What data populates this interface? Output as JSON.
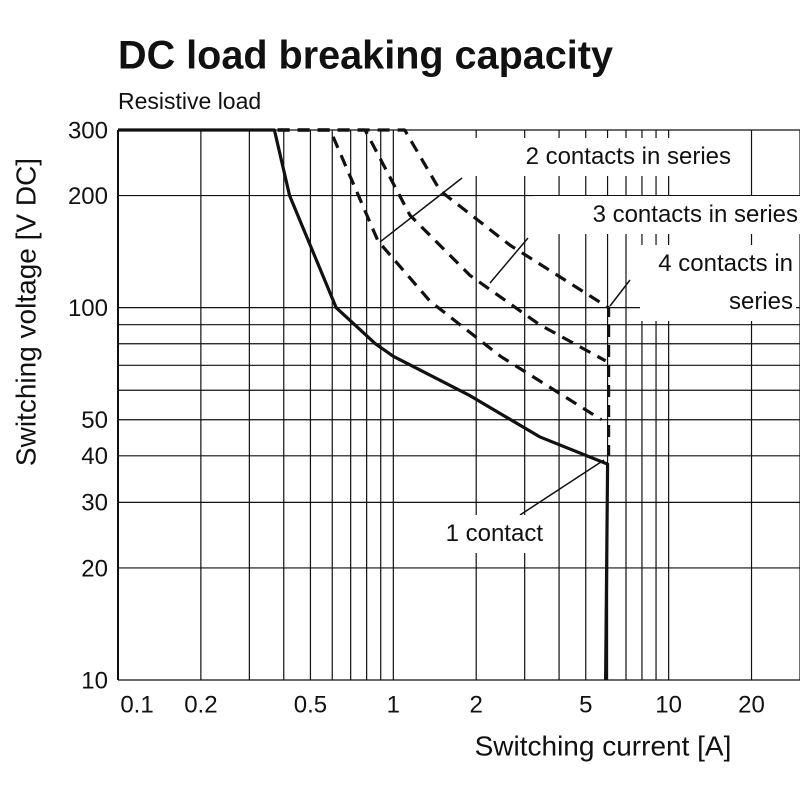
{
  "chart_data": {
    "type": "line",
    "title": "DC load breaking capacity",
    "subtitle": "Resistive load",
    "xlabel": "Switching current [A]",
    "ylabel": "Switching voltage [V DC]",
    "xscale": "log",
    "yscale": "log",
    "xlim": [
      0.1,
      30
    ],
    "ylim": [
      10,
      300
    ],
    "xticks": [
      0.1,
      0.2,
      0.5,
      1,
      2,
      5,
      10,
      20
    ],
    "yticks": [
      10,
      20,
      30,
      40,
      50,
      100,
      200,
      300
    ],
    "x_grid": [
      0.1,
      0.2,
      0.3,
      0.4,
      0.5,
      0.6,
      0.7,
      0.8,
      0.9,
      1,
      2,
      3,
      4,
      5,
      6,
      7,
      8,
      9,
      10,
      20,
      30
    ],
    "y_grid": [
      10,
      20,
      30,
      40,
      50,
      60,
      70,
      80,
      90,
      100,
      200,
      300
    ],
    "series": [
      {
        "name": "1 contact",
        "color": "#111111",
        "style": "solid",
        "x": [
          0.1,
          0.37,
          0.42,
          0.62,
          0.86,
          1.0,
          1.9,
          3.4,
          6.0,
          5.9
        ],
        "values": [
          300,
          300,
          200,
          100,
          80,
          74,
          58,
          45,
          38,
          10
        ]
      },
      {
        "name": "2 contacts in series",
        "color": "#111111",
        "style": "dashed",
        "x": [
          0.38,
          0.59,
          0.88,
          1.36,
          2.45,
          5.7
        ],
        "values": [
          300,
          300,
          151,
          104,
          74,
          50
        ]
      },
      {
        "name": "3 contacts in series",
        "color": "#111111",
        "style": "dashed",
        "x": [
          0.38,
          0.79,
          1.15,
          1.9,
          3.4,
          5.9
        ],
        "values": [
          300,
          300,
          177,
          122,
          90,
          72
        ]
      },
      {
        "name": "4 contacts in series",
        "color": "#111111",
        "style": "dashed",
        "x": [
          0.38,
          1.1,
          1.48,
          2.66,
          6.05,
          6.05
        ],
        "values": [
          300,
          300,
          206,
          147,
          100,
          40
        ]
      }
    ]
  }
}
